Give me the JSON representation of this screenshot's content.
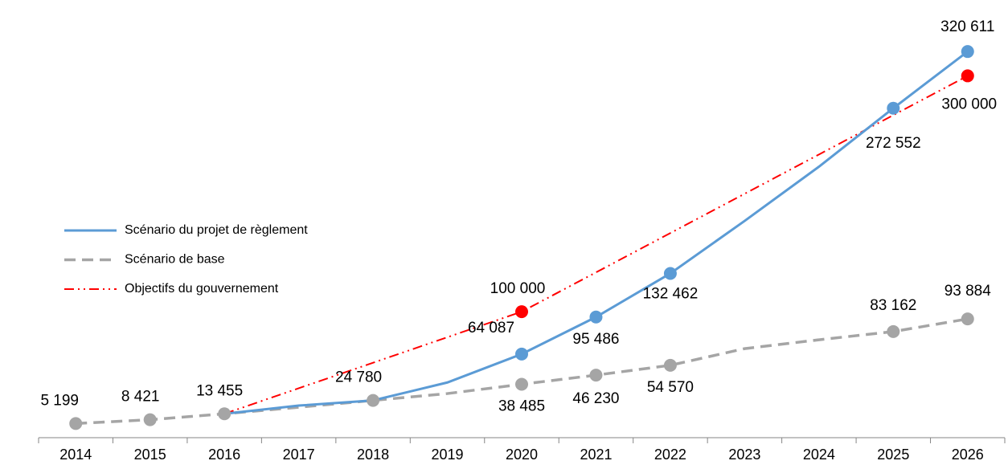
{
  "chart_data": {
    "type": "line",
    "categories": [
      "2014",
      "2015",
      "2016",
      "2017",
      "2018",
      "2019",
      "2020",
      "2021",
      "2022",
      "2023",
      "2024",
      "2025",
      "2026"
    ],
    "ylim": [
      0,
      350000
    ],
    "legend": "left",
    "series": [
      {
        "name": "Scénario du projet de règlement",
        "color": "#5b9bd5",
        "dash": "solid",
        "values": [
          null,
          null,
          13455,
          20400,
          24780,
          40000,
          64087,
          95486,
          132462,
          177000,
          223000,
          272552,
          320611
        ],
        "value_labels": [
          null,
          null,
          null,
          null,
          null,
          null,
          "64 087",
          "95 486",
          "132 462",
          null,
          null,
          "272 552",
          "320 611"
        ]
      },
      {
        "name": "Scénario de base",
        "color": "#a5a5a5",
        "dash": "dashed",
        "values": [
          5199,
          8421,
          13455,
          19000,
          24780,
          30600,
          38485,
          46230,
          54570,
          68700,
          76200,
          83162,
          93884
        ],
        "value_labels": [
          "5 199",
          "8 421",
          "13 455",
          null,
          "24 780",
          null,
          "38 485",
          "46 230",
          "54 570",
          null,
          null,
          "83 162",
          "93 884"
        ]
      },
      {
        "name": "Objectifs du gouvernement",
        "color": "#ff0000",
        "dash": "dashdot",
        "values": [
          null,
          null,
          13455,
          35091,
          56728,
          78364,
          100000,
          133333,
          166667,
          200000,
          233333,
          266667,
          300000
        ],
        "value_labels": [
          null,
          null,
          null,
          null,
          null,
          null,
          "100 000",
          null,
          null,
          null,
          null,
          null,
          "300 000"
        ]
      }
    ]
  }
}
